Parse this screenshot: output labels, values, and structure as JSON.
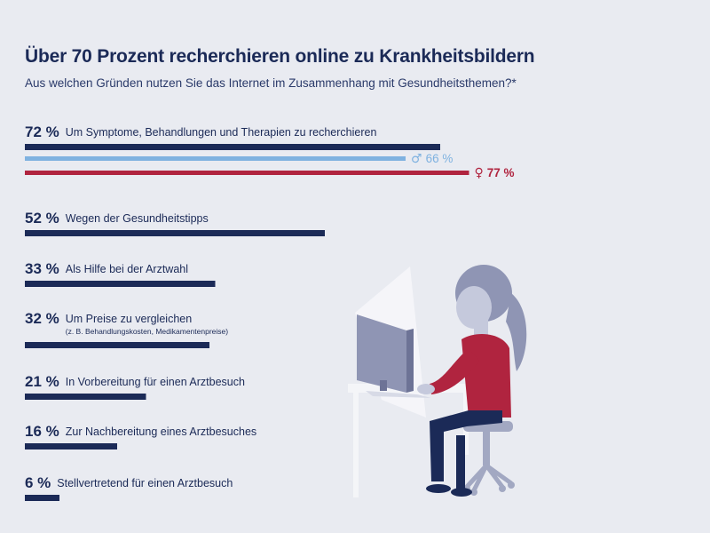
{
  "header": {
    "title": "Über 70 Prozent recherchieren online zu Krankheitsbildern",
    "subtitle": "Aus welchen Gründen nutzen Sie das Internet im Zusammenhang mit Gesundheitsthemen?*"
  },
  "colors": {
    "primary": "#1b2a57",
    "male": "#7fb2e0",
    "female": "#b0243f",
    "background": "#e9ebf1"
  },
  "chart_data": {
    "type": "bar",
    "orientation": "horizontal",
    "value_suffix": " %",
    "xlim": [
      0,
      100
    ],
    "grid": false,
    "categories": [
      "Um Symptome, Behandlungen und Therapien zu recherchieren",
      "Wegen der Gesundheitstipps",
      "Als Hilfe bei der Arztwahl",
      "Um Preise zu vergleichen",
      "In Vorbereitung für einen Arztbesuch",
      "Zur Nachbereitung eines Arztbesuches",
      "Stellvertretend für einen Arztbesuch"
    ],
    "notes": [
      "",
      "",
      "",
      "(z. B. Behandlungskosten, Medikamentenpreise)",
      "",
      "",
      ""
    ],
    "values": [
      72,
      52,
      33,
      32,
      21,
      16,
      6
    ],
    "value_labels": [
      "72 %",
      "52 %",
      "33 %",
      "32 %",
      "21 %",
      "16 %",
      "6 %"
    ],
    "breakdown": {
      "category_index": 0,
      "series": [
        {
          "symbol": "♂",
          "value": 66,
          "label": "66 %",
          "color": "#7fb2e0"
        },
        {
          "symbol": "♀",
          "value": 77,
          "label": "77 %",
          "color": "#b0243f"
        }
      ]
    }
  }
}
